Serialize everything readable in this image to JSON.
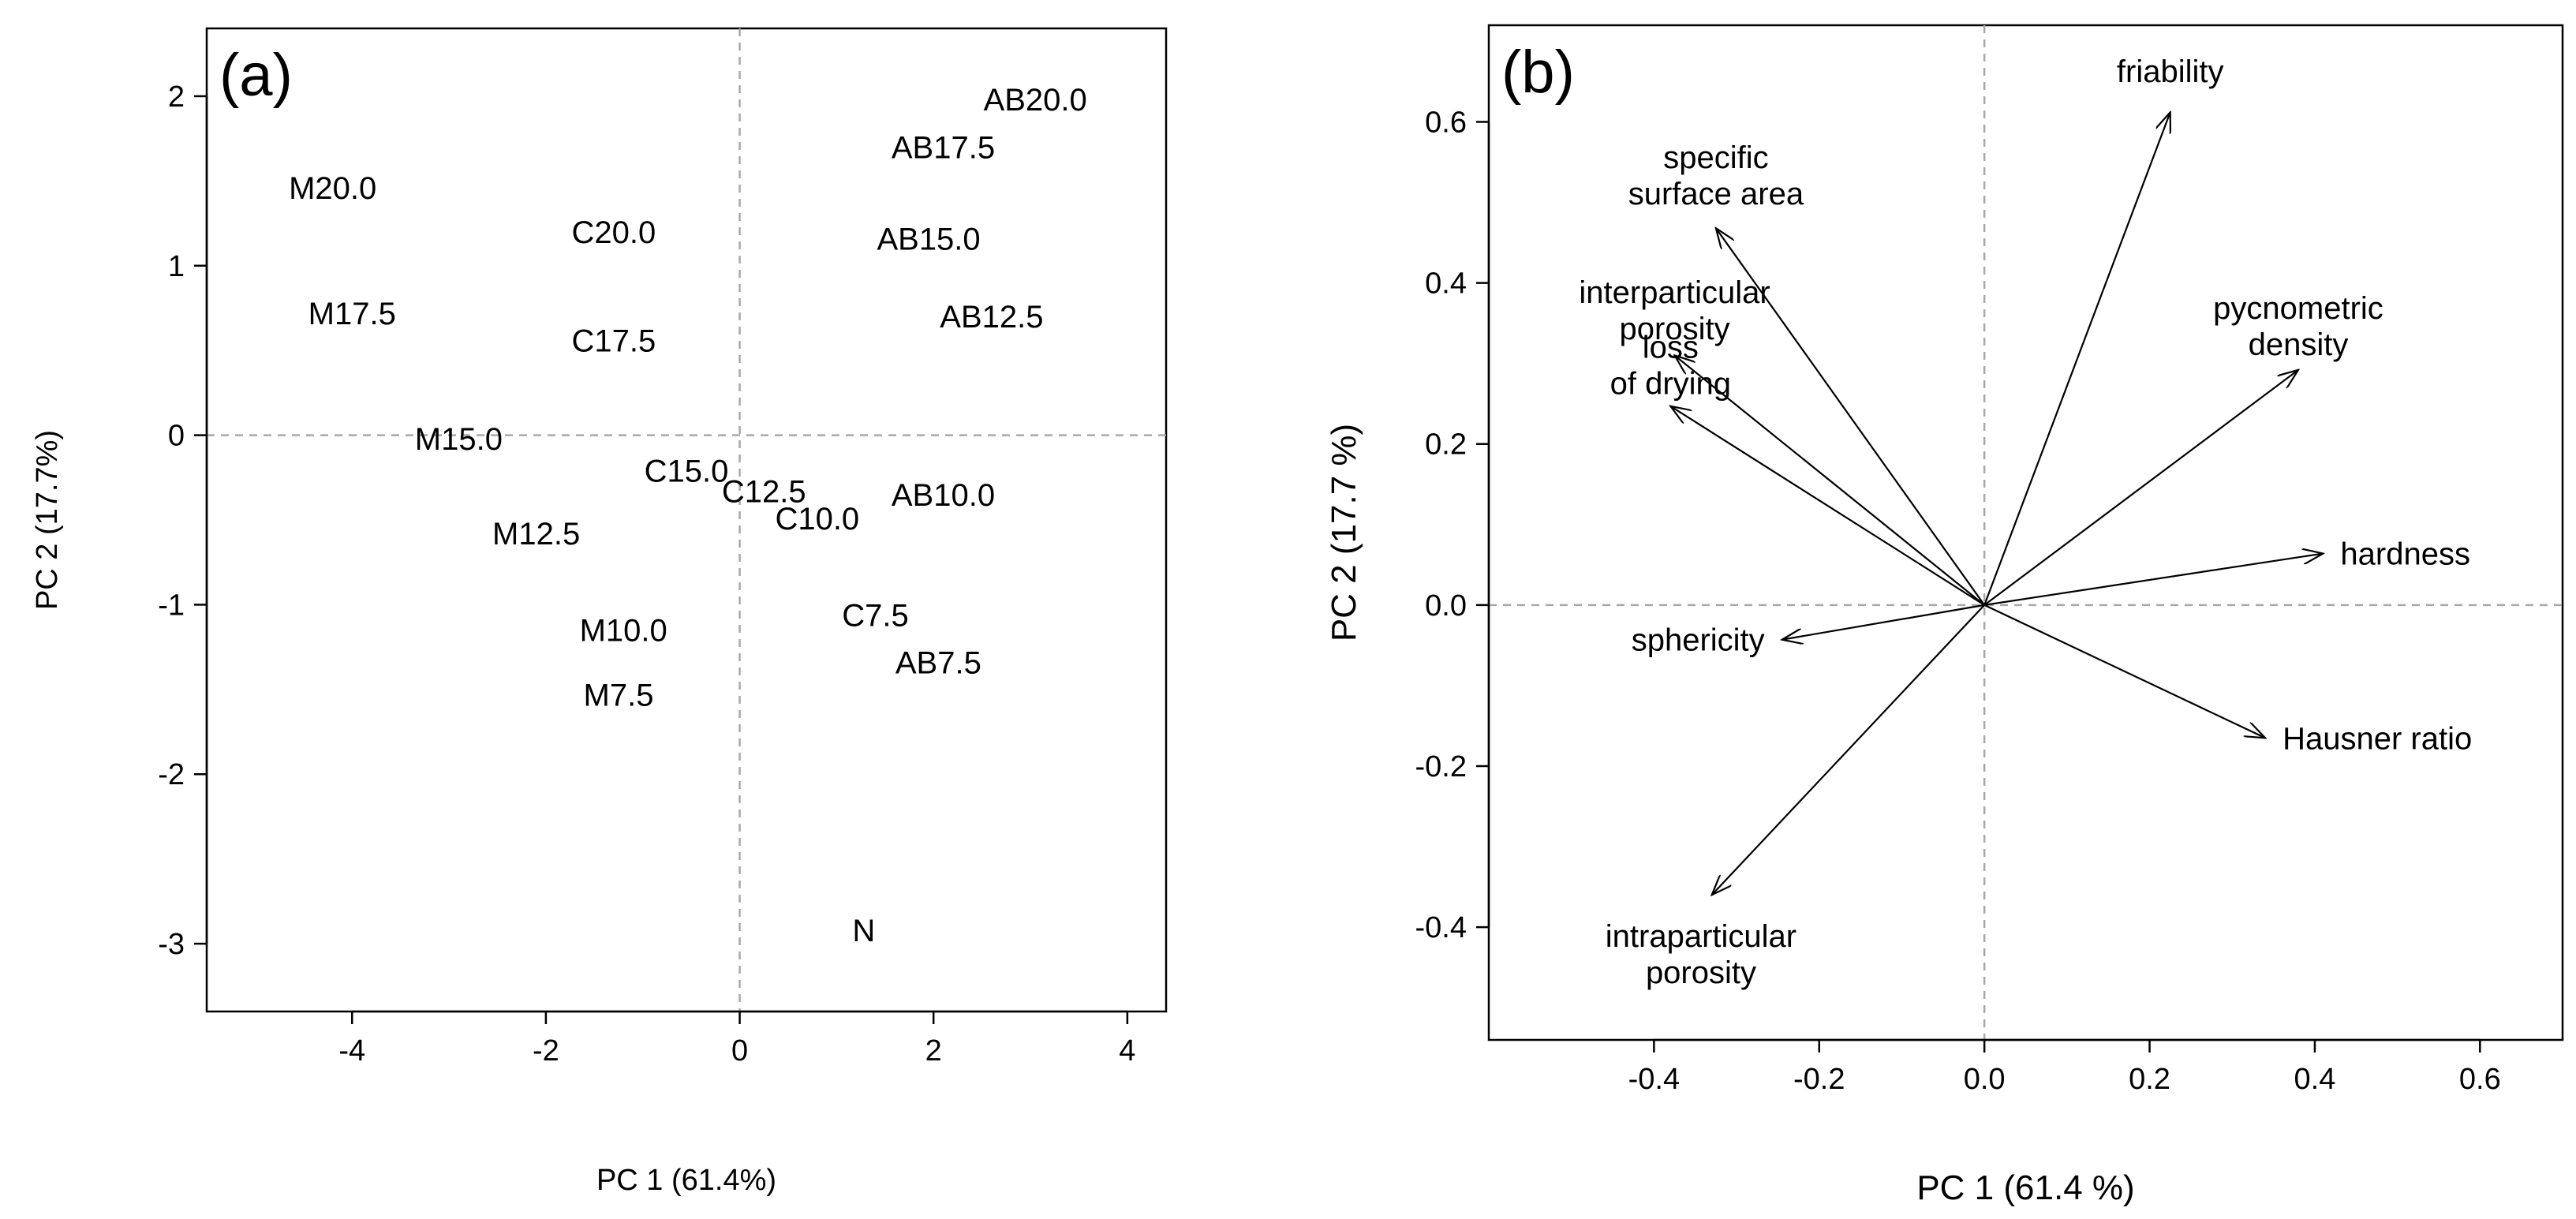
{
  "chart_data": [
    {
      "type": "scatter",
      "panel_label": "(a)",
      "title": "",
      "xlabel": "PC 1 (61.4%)",
      "ylabel": "PC 2 (17.7%)",
      "xlim": [
        -5.5,
        4.4
      ],
      "ylim": [
        -3.4,
        2.4
      ],
      "xticks": [
        -4,
        -2,
        0,
        2,
        4
      ],
      "yticks": [
        -3,
        -2,
        -1,
        0,
        1,
        2
      ],
      "zero_lines": true,
      "points": [
        {
          "label": "AB20.0",
          "x": 3.05,
          "y": 1.98
        },
        {
          "label": "AB17.5",
          "x": 2.1,
          "y": 1.7
        },
        {
          "label": "M20.0",
          "x": -4.2,
          "y": 1.46
        },
        {
          "label": "C20.0",
          "x": -1.3,
          "y": 1.2
        },
        {
          "label": "AB15.0",
          "x": 1.95,
          "y": 1.16
        },
        {
          "label": "M17.5",
          "x": -4.0,
          "y": 0.72
        },
        {
          "label": "AB12.5",
          "x": 2.6,
          "y": 0.7
        },
        {
          "label": "C17.5",
          "x": -1.3,
          "y": 0.56
        },
        {
          "label": "M15.0",
          "x": -2.9,
          "y": -0.02
        },
        {
          "label": "C15.0",
          "x": -0.55,
          "y": -0.21
        },
        {
          "label": "C12.5",
          "x": 0.25,
          "y": -0.33
        },
        {
          "label": "AB10.0",
          "x": 2.1,
          "y": -0.35
        },
        {
          "label": "C10.0",
          "x": 0.8,
          "y": -0.49
        },
        {
          "label": "M12.5",
          "x": -2.1,
          "y": -0.58
        },
        {
          "label": "C7.5",
          "x": 1.4,
          "y": -1.06
        },
        {
          "label": "M10.0",
          "x": -1.2,
          "y": -1.15
        },
        {
          "label": "AB7.5",
          "x": 2.05,
          "y": -1.34
        },
        {
          "label": "M7.5",
          "x": -1.25,
          "y": -1.53
        },
        {
          "label": "N",
          "x": 1.28,
          "y": -2.92
        }
      ]
    },
    {
      "type": "biplot-loadings",
      "panel_label": "(b)",
      "title": "",
      "xlabel": "PC 1 (61.4 %)",
      "ylabel": "PC 2 (17.7 %)",
      "xlim": [
        -0.6,
        0.7
      ],
      "ylim": [
        -0.54,
        0.72
      ],
      "xticks": [
        -0.4,
        -0.2,
        0.0,
        0.2,
        0.4,
        0.6
      ],
      "xtick_labels": [
        "-0.4",
        "-0.2",
        "0.0",
        "0.2",
        "0.4",
        "0.6"
      ],
      "yticks": [
        -0.4,
        -0.2,
        0.0,
        0.2,
        0.4,
        0.6
      ],
      "ytick_labels": [
        "-0.4",
        "-0.2",
        "0.0",
        "0.2",
        "0.4",
        "0.6"
      ],
      "zero_lines": true,
      "loadings": [
        {
          "label": [
            "friability"
          ],
          "x": 0.225,
          "y": 0.612
        },
        {
          "label": [
            "specific",
            "surface area"
          ],
          "x": -0.325,
          "y": 0.468
        },
        {
          "label": [
            "interparticular",
            "porosity"
          ],
          "x": -0.375,
          "y": 0.31
        },
        {
          "label": [
            "loss",
            "of drying"
          ],
          "x": -0.38,
          "y": 0.247
        },
        {
          "label": [
            "pycnometric",
            "density"
          ],
          "x": 0.38,
          "y": 0.292
        },
        {
          "label": [
            "hardness"
          ],
          "x": 0.41,
          "y": 0.064
        },
        {
          "label": [
            "sphericity"
          ],
          "x": -0.245,
          "y": -0.043
        },
        {
          "label": [
            "Hausner ratio"
          ],
          "x": 0.34,
          "y": -0.165
        },
        {
          "label": [
            "intraparticular",
            "porosity"
          ],
          "x": -0.33,
          "y": -0.36
        }
      ]
    }
  ]
}
